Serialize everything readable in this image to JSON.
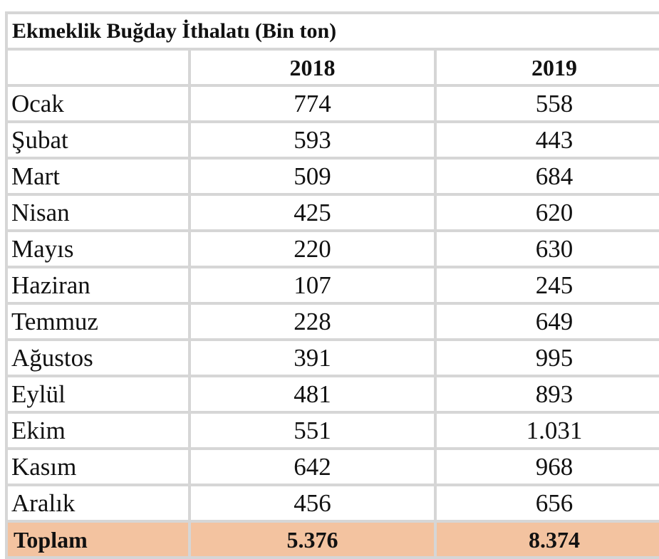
{
  "table": {
    "title": "Ekmeklik Buğday İthalatı (Bin ton)",
    "headers": [
      "",
      "2018",
      "2019"
    ],
    "rows": [
      {
        "month": "Ocak",
        "y2018": "774",
        "y2019": "558"
      },
      {
        "month": "Şubat",
        "y2018": "593",
        "y2019": "443"
      },
      {
        "month": "Mart",
        "y2018": "509",
        "y2019": "684"
      },
      {
        "month": "Nisan",
        "y2018": "425",
        "y2019": "620"
      },
      {
        "month": "Mayıs",
        "y2018": "220",
        "y2019": "630"
      },
      {
        "month": "Haziran",
        "y2018": "107",
        "y2019": "245"
      },
      {
        "month": "Temmuz",
        "y2018": "228",
        "y2019": "649"
      },
      {
        "month": "Ağustos",
        "y2018": "391",
        "y2019": "995"
      },
      {
        "month": "Eylül",
        "y2018": "481",
        "y2019": "893"
      },
      {
        "month": "Ekim",
        "y2018": "551",
        "y2019": "1.031"
      },
      {
        "month": "Kasım",
        "y2018": "642",
        "y2019": "968"
      },
      {
        "month": "Aralık",
        "y2018": "456",
        "y2019": "656"
      }
    ],
    "total": {
      "label": "Toplam",
      "y2018": "5.376",
      "y2019": "8.374"
    },
    "colors": {
      "grid": "#d6d6d6",
      "total_bg": "#f3c3a0"
    }
  }
}
